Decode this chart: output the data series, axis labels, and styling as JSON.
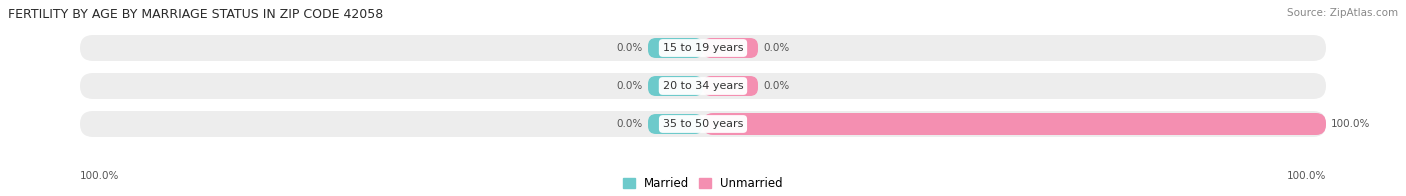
{
  "title": "FERTILITY BY AGE BY MARRIAGE STATUS IN ZIP CODE 42058",
  "source": "Source: ZipAtlas.com",
  "categories": [
    "15 to 19 years",
    "20 to 34 years",
    "35 to 50 years"
  ],
  "married_vals": [
    0.0,
    0.0,
    0.0
  ],
  "unmarried_vals": [
    0.0,
    0.0,
    100.0
  ],
  "left_axis_label": "100.0%",
  "right_axis_label": "100.0%",
  "married_color": "#6DCACB",
  "unmarried_color": "#F48FB1",
  "bar_bg_color": "#EDEDED",
  "center_label_married": [
    "0.0%",
    "0.0%",
    "0.0%"
  ],
  "center_label_unmarried": [
    "0.0%",
    "0.0%",
    "100.0%"
  ],
  "title_fontsize": 9,
  "source_fontsize": 7.5,
  "label_fontsize": 7.5,
  "cat_fontsize": 8
}
